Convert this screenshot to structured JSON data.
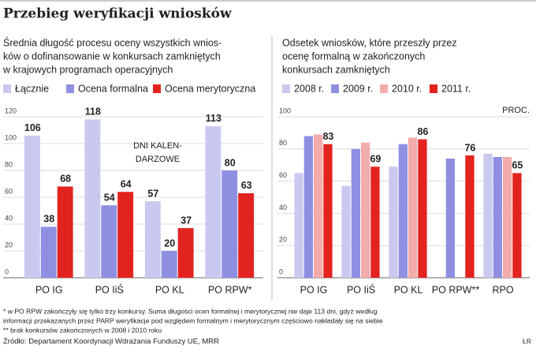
{
  "title": "Przebieg weryfikacji wniosków",
  "chart_data": [
    {
      "type": "bar",
      "subtitle": [
        "Średnia długość procesu oceny wszystkich wnios-",
        "ków o dofinansowanie w konkursach zamkniętych",
        "w krajowych programach operacyjnych"
      ],
      "annotation": [
        "DNI KALEN-",
        "DARZOWE"
      ],
      "categories": [
        "PO IG",
        "PO IiŚ",
        "PO KL",
        "PO RPW*"
      ],
      "series": [
        {
          "name": "Łącznie",
          "color": "#c9c9f0",
          "values": [
            106,
            118,
            57,
            113
          ],
          "show_labels": true
        },
        {
          "name": "Ocena formalna",
          "color": "#8f8fe2",
          "values": [
            38,
            54,
            20,
            80
          ],
          "show_labels": true
        },
        {
          "name": "Ocena merytoryczna",
          "color": "#e2231f",
          "values": [
            68,
            64,
            37,
            63
          ],
          "show_labels": true
        }
      ],
      "ylim": [
        0,
        120
      ],
      "yticks": [
        0,
        20,
        40,
        60,
        80,
        100,
        120
      ],
      "grid": true
    },
    {
      "type": "bar",
      "subtitle": [
        "Odsetek wniosków, które przeszły przez",
        "ocenę formalną w zakończonych",
        "konkursach zamkniętych"
      ],
      "annotation": [
        "PROC."
      ],
      "categories": [
        "PO IG",
        "PO IiŚ",
        "PO KL",
        "PO RPW**",
        "RPO"
      ],
      "series": [
        {
          "name": "2008 r.",
          "color": "#c9c9f0",
          "values": [
            65,
            57,
            69,
            null,
            77
          ],
          "show_labels": false
        },
        {
          "name": "2009 r.",
          "color": "#8f8fe2",
          "values": [
            88,
            80,
            83,
            74,
            75
          ],
          "show_labels": false
        },
        {
          "name": "2010 r.",
          "color": "#f3abab",
          "values": [
            89,
            84,
            87,
            null,
            75
          ],
          "show_labels": false
        },
        {
          "name": "2011 r.",
          "color": "#e2231f",
          "values": [
            83,
            69,
            86,
            76,
            65
          ],
          "show_labels": true
        }
      ],
      "ylim": [
        0,
        100
      ],
      "yticks": [
        0,
        20,
        40,
        60,
        80,
        100
      ],
      "grid": true
    }
  ],
  "footnotes": [
    "* w PO RPW zakończyły się tylko trzy konkursy. Suma długości ocen formalnej i merytorycznej nie daje 113 dni, gdyż według",
    "informacji przekazanych przez PARP weryfikacje pod względem formalnym i merytorycznym częściowo nakładały się na siebie",
    "** brak konkursów zakończonych w 2008 i 2010 roku"
  ],
  "source": "Źródło: Departament Koordynacji Wdrażania Funduszy UE, MRR",
  "credit": "ŁR"
}
